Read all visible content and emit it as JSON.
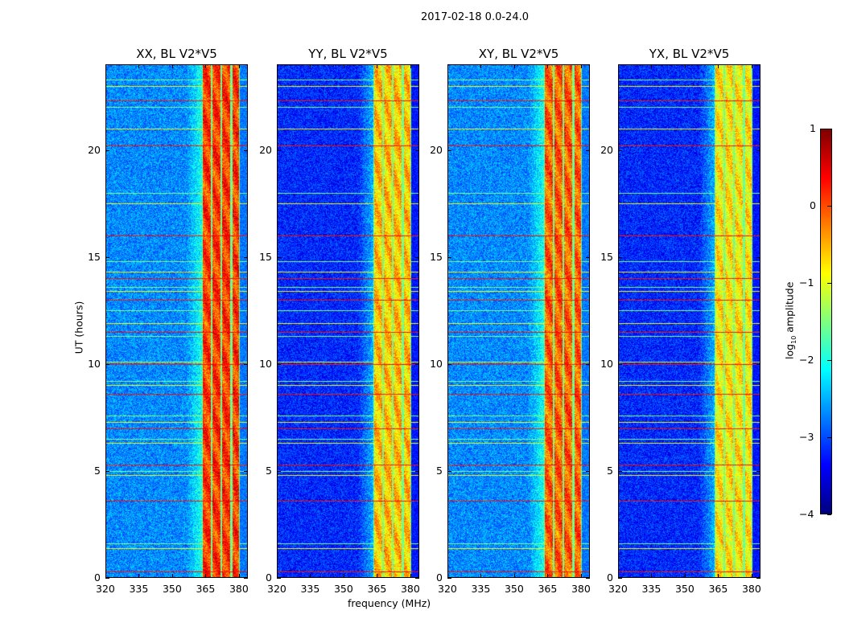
{
  "chart_data": {
    "type": "heatmap",
    "title": "2017-02-18 0.0-24.0",
    "xlabel": "frequency (MHz)",
    "ylabel": "UT (hours)",
    "xlim": [
      320,
      384
    ],
    "ylim": [
      0,
      24
    ],
    "xticks": [
      "320",
      "335",
      "350",
      "365",
      "380"
    ],
    "yticks": [
      "0",
      "5",
      "10",
      "15",
      "20"
    ],
    "colorbar": {
      "label_main": "log",
      "label_sub": "10",
      "label_rest": " amplitude",
      "range": [
        -4,
        1
      ],
      "ticks": [
        "−4",
        "−3",
        "−2",
        "−1",
        "0",
        "1"
      ],
      "colormap": "jet"
    },
    "rfi_band_mhz": [
      [
        363.5,
        367.2
      ],
      [
        367.8,
        371.6
      ],
      [
        372.2,
        375.8
      ],
      [
        376.8,
        379.8
      ]
    ],
    "rfi_hours": [
      0.3,
      1.4,
      1.6,
      3.6,
      4.8,
      5.0,
      5.3,
      6.3,
      6.5,
      7.0,
      7.3,
      7.6,
      8.6,
      9.0,
      9.2,
      10.0,
      10.1,
      11.3,
      11.5,
      11.9,
      12.5,
      13.0,
      13.4,
      13.6,
      14.0,
      14.3,
      14.8,
      16.0,
      17.5,
      18.0,
      20.2,
      21.0,
      22.0,
      22.3,
      23.0,
      23.3
    ],
    "panels": [
      {
        "title": "XX, BL V2*V5",
        "background_log_amp": -2.7,
        "band_log_amp": 0.1
      },
      {
        "title": "YY, BL V2*V5",
        "background_log_amp": -3.2,
        "band_log_amp": -0.6
      },
      {
        "title": "XY, BL V2*V5",
        "background_log_amp": -2.7,
        "band_log_amp": -0.1
      },
      {
        "title": "YX, BL V2*V5",
        "background_log_amp": -3.2,
        "band_log_amp": -0.8
      }
    ]
  }
}
